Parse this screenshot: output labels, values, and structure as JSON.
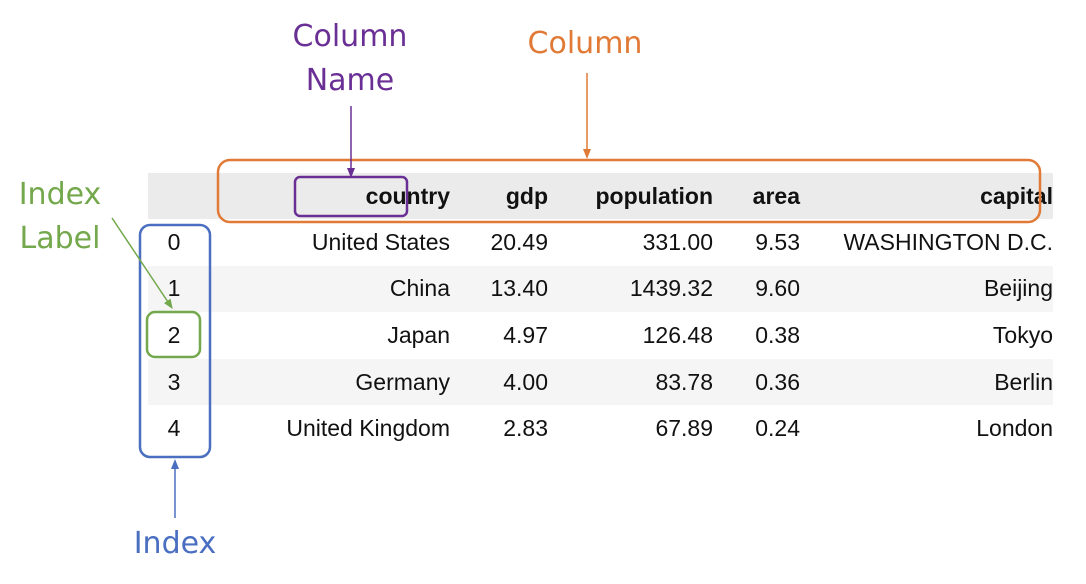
{
  "annotations": {
    "column_name": "Column\nName",
    "column": "Column",
    "index_label": "Index\nLabel",
    "index": "Index"
  },
  "colors": {
    "column_name": "#6a2f94",
    "column": "#e07a36",
    "index_label": "#74a84c",
    "index": "#4a6fc0",
    "header_bg": "#ebebeb",
    "stripe_bg": "#f5f5f5"
  },
  "table": {
    "columns": [
      "country",
      "gdp",
      "population",
      "area",
      "capital"
    ],
    "rows": [
      {
        "index": "0",
        "country": "United States",
        "gdp": "20.49",
        "population": "331.00",
        "area": "9.53",
        "capital": "WASHINGTON D.C."
      },
      {
        "index": "1",
        "country": "China",
        "gdp": "13.40",
        "population": "1439.32",
        "area": "9.60",
        "capital": "Beijing"
      },
      {
        "index": "2",
        "country": "Japan",
        "gdp": "4.97",
        "population": "126.48",
        "area": "0.38",
        "capital": "Tokyo"
      },
      {
        "index": "3",
        "country": "Germany",
        "gdp": "4.00",
        "population": "83.78",
        "area": "0.36",
        "capital": "Berlin"
      },
      {
        "index": "4",
        "country": "United Kingdom",
        "gdp": "2.83",
        "population": "67.89",
        "area": "0.24",
        "capital": "London"
      }
    ]
  }
}
